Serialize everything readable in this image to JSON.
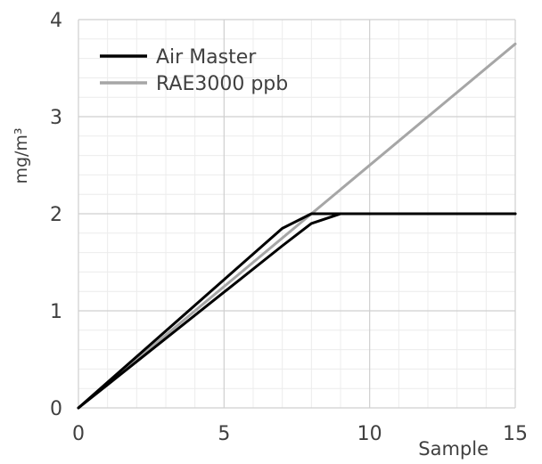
{
  "chart_data": {
    "type": "line",
    "title": "",
    "xlabel": "Sample",
    "ylabel": "mg/m³",
    "xlim": [
      0,
      15
    ],
    "ylim": [
      0,
      4
    ],
    "x_ticks": [
      0,
      5,
      10,
      15
    ],
    "y_ticks": [
      0,
      1,
      2,
      3,
      4
    ],
    "grid": {
      "major": true,
      "minor": true,
      "major_color": "#cfcfcf",
      "minor_color": "#ececec"
    },
    "legend": {
      "position": "top-left"
    },
    "series": [
      {
        "name": "Air Master",
        "color": "#000000",
        "x": [
          0,
          7,
          8,
          9,
          10,
          11,
          12,
          13,
          14,
          15
        ],
        "y": [
          0,
          1.85,
          2.0,
          2.0,
          2.0,
          2.0,
          2.0,
          2.0,
          2.0,
          2.0
        ]
      },
      {
        "name": "",
        "color": "#000000",
        "x": [
          0,
          7,
          8,
          9,
          10,
          11,
          12,
          13,
          14,
          15
        ],
        "y": [
          0,
          1.67,
          1.9,
          2.0,
          2.0,
          2.0,
          2.0,
          2.0,
          2.0,
          2.0
        ]
      },
      {
        "name": "RAE3000 ppb",
        "color": "#a6a6a6",
        "x": [
          0,
          15
        ],
        "y": [
          0,
          3.75
        ]
      }
    ]
  }
}
